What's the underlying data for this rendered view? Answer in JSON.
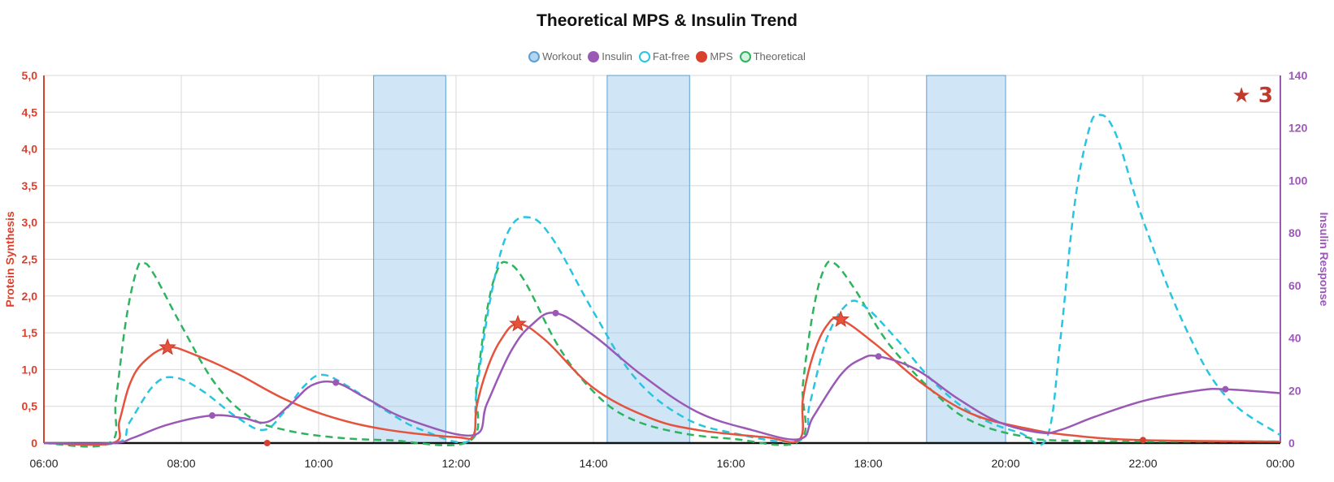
{
  "chart_data": {
    "type": "line",
    "title": "Theoretical MPS & Insulin Trend",
    "y_left_label": "Protein Synthesis",
    "y_right_label": "Insulin Response",
    "x_ticks": [
      "06:00",
      "08:00",
      "10:00",
      "12:00",
      "14:00",
      "16:00",
      "18:00",
      "20:00",
      "22:00",
      "00:00"
    ],
    "y_left_ticks": [
      "0",
      "0,5",
      "1,0",
      "1,5",
      "2,0",
      "2,5",
      "3,0",
      "3,5",
      "4,0",
      "4,5",
      "5,0"
    ],
    "y_right_ticks": [
      "0",
      "20",
      "40",
      "60",
      "80",
      "100",
      "120",
      "140"
    ],
    "xlim_hours": [
      6,
      24
    ],
    "ylim_left": [
      0,
      5
    ],
    "ylim_right": [
      0,
      140
    ],
    "grid": true,
    "legend_position": "top-center",
    "legend": [
      {
        "label": "Workout",
        "color": "#5aa0d6",
        "fill": "#b3d5f0"
      },
      {
        "label": "Insulin",
        "color": "#9b59b6",
        "fill": "#9b59b6"
      },
      {
        "label": "Fat-free",
        "color": "#29c5e0",
        "fill": "#ffffff"
      },
      {
        "label": "MPS",
        "color": "#d9412f",
        "fill": "#d9412f"
      },
      {
        "label": "Theoretical",
        "color": "#2eb35e",
        "fill": "#d6f2df"
      }
    ],
    "workouts": [
      [
        10.8,
        11.85
      ],
      [
        14.2,
        15.4
      ],
      [
        18.85,
        20.0
      ]
    ],
    "series": [
      {
        "name": "MPS",
        "axis": "left",
        "color": "#e5533d",
        "dash": false,
        "points": [
          [
            6,
            0
          ],
          [
            7,
            0
          ],
          [
            7.1,
            0.3
          ],
          [
            7.25,
            0.8
          ],
          [
            7.45,
            1.1
          ],
          [
            7.8,
            1.3
          ],
          [
            8.2,
            1.2
          ],
          [
            8.8,
            0.95
          ],
          [
            9.5,
            0.6
          ],
          [
            10.2,
            0.35
          ],
          [
            11,
            0.18
          ],
          [
            12,
            0.08
          ],
          [
            12.25,
            0.1
          ],
          [
            12.3,
            0.5
          ],
          [
            12.45,
            1.0
          ],
          [
            12.65,
            1.4
          ],
          [
            12.9,
            1.62
          ],
          [
            13.3,
            1.4
          ],
          [
            14,
            0.75
          ],
          [
            14.8,
            0.35
          ],
          [
            15.5,
            0.18
          ],
          [
            16.5,
            0.08
          ],
          [
            17.0,
            0.05
          ],
          [
            17.05,
            0.6
          ],
          [
            17.2,
            1.2
          ],
          [
            17.4,
            1.6
          ],
          [
            17.6,
            1.68
          ],
          [
            18.1,
            1.35
          ],
          [
            18.8,
            0.8
          ],
          [
            19.5,
            0.4
          ],
          [
            20.3,
            0.2
          ],
          [
            21,
            0.1
          ],
          [
            22,
            0.04
          ],
          [
            24,
            0.02
          ]
        ],
        "stars": [
          [
            7.8,
            1.3
          ],
          [
            12.9,
            1.62
          ],
          [
            17.6,
            1.68
          ]
        ]
      },
      {
        "name": "Theoretical",
        "axis": "left",
        "color": "#2eb35e",
        "dash": true,
        "points": [
          [
            6,
            0
          ],
          [
            6.95,
            0
          ],
          [
            7.05,
            0.6
          ],
          [
            7.2,
            1.7
          ],
          [
            7.35,
            2.35
          ],
          [
            7.45,
            2.45
          ],
          [
            7.6,
            2.3
          ],
          [
            8.0,
            1.6
          ],
          [
            8.5,
            0.8
          ],
          [
            9.0,
            0.35
          ],
          [
            9.5,
            0.18
          ],
          [
            10.2,
            0.08
          ],
          [
            11,
            0.04
          ],
          [
            12.2,
            0.03
          ],
          [
            12.3,
            0.8
          ],
          [
            12.45,
            1.8
          ],
          [
            12.6,
            2.35
          ],
          [
            12.75,
            2.45
          ],
          [
            13.0,
            2.2
          ],
          [
            13.5,
            1.3
          ],
          [
            14,
            0.7
          ],
          [
            14.5,
            0.35
          ],
          [
            15.2,
            0.15
          ],
          [
            16,
            0.06
          ],
          [
            17,
            0.03
          ],
          [
            17.05,
            0.8
          ],
          [
            17.2,
            1.8
          ],
          [
            17.35,
            2.35
          ],
          [
            17.5,
            2.45
          ],
          [
            17.8,
            2.1
          ],
          [
            18.3,
            1.35
          ],
          [
            19,
            0.65
          ],
          [
            19.5,
            0.3
          ],
          [
            20.2,
            0.1
          ],
          [
            21,
            0.03
          ],
          [
            24,
            0.02
          ]
        ]
      },
      {
        "name": "Fat-free",
        "axis": "right",
        "color": "#29c5e0",
        "dash": true,
        "points": [
          [
            6,
            0
          ],
          [
            7.05,
            0
          ],
          [
            7.25,
            8
          ],
          [
            7.6,
            22
          ],
          [
            7.9,
            25
          ],
          [
            8.3,
            20
          ],
          [
            8.8,
            10
          ],
          [
            9.2,
            5
          ],
          [
            9.5,
            12
          ],
          [
            9.8,
            22
          ],
          [
            10.05,
            26
          ],
          [
            10.4,
            22
          ],
          [
            11,
            12
          ],
          [
            11.5,
            5
          ],
          [
            12.2,
            1
          ],
          [
            12.3,
            20
          ],
          [
            12.5,
            55
          ],
          [
            12.75,
            80
          ],
          [
            13.05,
            86
          ],
          [
            13.4,
            78
          ],
          [
            14,
            50
          ],
          [
            14.6,
            25
          ],
          [
            15.3,
            10
          ],
          [
            16,
            4
          ],
          [
            17,
            1
          ],
          [
            17.15,
            15
          ],
          [
            17.4,
            40
          ],
          [
            17.7,
            53
          ],
          [
            17.95,
            52
          ],
          [
            18.4,
            40
          ],
          [
            19,
            22
          ],
          [
            19.6,
            10
          ],
          [
            20.2,
            4
          ],
          [
            20.6,
            2
          ],
          [
            20.8,
            40
          ],
          [
            21.0,
            90
          ],
          [
            21.2,
            118
          ],
          [
            21.35,
            125
          ],
          [
            21.6,
            118
          ],
          [
            22,
            85
          ],
          [
            22.6,
            45
          ],
          [
            23.2,
            18
          ],
          [
            24,
            3
          ]
        ]
      },
      {
        "name": "Insulin",
        "axis": "right",
        "color": "#9b59b6",
        "dash": false,
        "points": [
          [
            6,
            0
          ],
          [
            7.0,
            0
          ],
          [
            7.3,
            2
          ],
          [
            7.8,
            7
          ],
          [
            8.45,
            10.5
          ],
          [
            8.9,
            9.5
          ],
          [
            9.25,
            8
          ],
          [
            9.6,
            15
          ],
          [
            9.9,
            22
          ],
          [
            10.25,
            23
          ],
          [
            10.7,
            17
          ],
          [
            11.3,
            9
          ],
          [
            12.25,
            3
          ],
          [
            12.45,
            15
          ],
          [
            12.8,
            35
          ],
          [
            13.1,
            45
          ],
          [
            13.45,
            49.5
          ],
          [
            14,
            41
          ],
          [
            14.7,
            26
          ],
          [
            15.5,
            12
          ],
          [
            16.3,
            5
          ],
          [
            17.0,
            1.5
          ],
          [
            17.2,
            10
          ],
          [
            17.6,
            26
          ],
          [
            17.9,
            32
          ],
          [
            18.15,
            33
          ],
          [
            18.7,
            28
          ],
          [
            19.3,
            17
          ],
          [
            19.9,
            8
          ],
          [
            20.5,
            4
          ],
          [
            20.8,
            5
          ],
          [
            21.3,
            10
          ],
          [
            22,
            16
          ],
          [
            22.8,
            20
          ],
          [
            23.2,
            20.5
          ],
          [
            24,
            19
          ]
        ],
        "markers": [
          [
            8.45,
            10.5
          ],
          [
            10.25,
            23
          ],
          [
            13.45,
            49.5
          ],
          [
            18.15,
            33
          ],
          [
            23.2,
            20.5
          ]
        ]
      }
    ],
    "mps_baseline_markers": [
      [
        9.25,
        0
      ],
      [
        22,
        0.04
      ]
    ],
    "badge": {
      "symbol": "★",
      "count": "3"
    }
  }
}
